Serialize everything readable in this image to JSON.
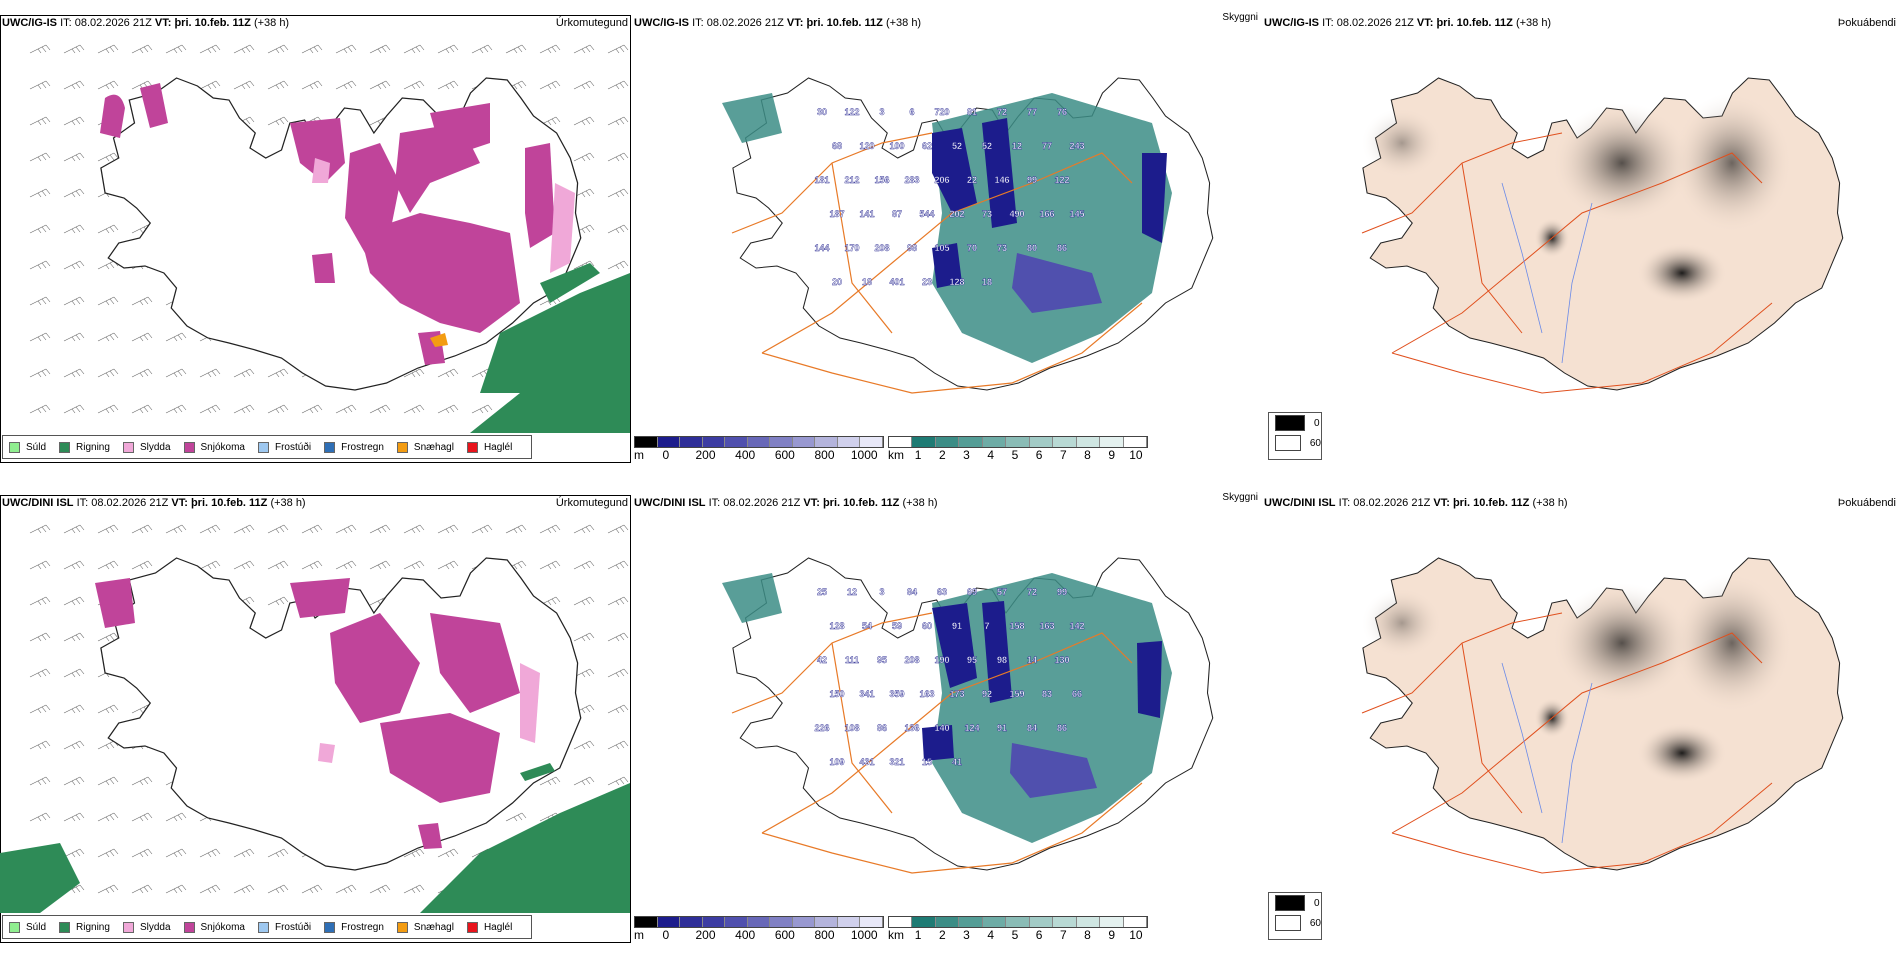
{
  "rows": [
    {
      "model": "UWC/IG-IS",
      "it_label": "IT:",
      "it_value": "08.02.2026 21Z",
      "vt_label": "VT:",
      "vt_value": "þri. 10.feb. 11Z",
      "lead": "(+38 h)",
      "cloud_labels": [
        "30",
        "122",
        "3",
        "6",
        "720",
        "81",
        "72",
        "77",
        "76",
        "68",
        "120",
        "100",
        "62",
        "52",
        "52",
        "12",
        "77",
        "243",
        "181",
        "212",
        "156",
        "283",
        "206",
        "22",
        "146",
        "99",
        "122",
        "187",
        "141",
        "87",
        "544",
        "202",
        "73",
        "490",
        "166",
        "145",
        "144",
        "170",
        "208",
        "98",
        "105",
        "70",
        "73",
        "80",
        "86",
        "20",
        "18",
        "401",
        "23",
        "128",
        "18"
      ]
    },
    {
      "model": "UWC/DINI ISL",
      "it_label": "IT:",
      "it_value": "08.02.2026 21Z",
      "vt_label": "VT:",
      "vt_value": "þri. 10.feb. 11Z",
      "lead": "(+38 h)",
      "cloud_labels": [
        "25",
        "12",
        "3",
        "84",
        "63",
        "69",
        "57",
        "72",
        "99",
        "128",
        "54",
        "59",
        "60",
        "91",
        "7",
        "158",
        "163",
        "142",
        "42",
        "111",
        "95",
        "208",
        "190",
        "95",
        "98",
        "14",
        "130",
        "150",
        "341",
        "359",
        "163",
        "173",
        "92",
        "159",
        "83",
        "66",
        "226",
        "108",
        "86",
        "136",
        "140",
        "124",
        "91",
        "84",
        "86",
        "109",
        "431",
        "321",
        "15",
        "41"
      ]
    }
  ],
  "panels": {
    "precip": {
      "param": "Úrkomutegund"
    },
    "cloud": {
      "param": "Skyggni"
    },
    "vis": {
      "param": "Þokuábendi"
    }
  },
  "precip_legend": [
    {
      "label": "Súld",
      "color": "#90ee90"
    },
    {
      "label": "Rigning",
      "color": "#2e8b57"
    },
    {
      "label": "Slydda",
      "color": "#f0a8d8"
    },
    {
      "label": "Snjókoma",
      "color": "#c0449a"
    },
    {
      "label": "Frostúði",
      "color": "#9ec8f0"
    },
    {
      "label": "Frostregn",
      "color": "#2f6fb6"
    },
    {
      "label": "Snæhagl",
      "color": "#f39c12"
    },
    {
      "label": "Haglél",
      "color": "#e8141c"
    }
  ],
  "cloud_base_scale": {
    "unit": "m",
    "ticks": [
      "0",
      "200",
      "400",
      "600",
      "800",
      "1000"
    ],
    "colors": [
      "#000000",
      "#1c1c8c",
      "#2e2e98",
      "#3c3ca2",
      "#5050ae",
      "#6868b8",
      "#8080c4",
      "#9898d0",
      "#b4b4dc",
      "#d0d0ec",
      "#e8e8f8"
    ]
  },
  "visibility_scale": {
    "unit": "km",
    "ticks": [
      "1",
      "2",
      "3",
      "4",
      "5",
      "6",
      "7",
      "8",
      "9",
      "10"
    ],
    "colors": [
      "#ffffff",
      "#1e7b74",
      "#3c8d86",
      "#549d96",
      "#6eaca6",
      "#8abcb6",
      "#a2cbc6",
      "#b8d9d4",
      "#cfe6e2",
      "#e4f1ef",
      "#ffffff"
    ]
  },
  "fog_legend": [
    {
      "label": "0",
      "color": "#000000"
    },
    {
      "label": "60",
      "color": "#ffffff"
    }
  ],
  "colors": {
    "road": "#e87a28",
    "road_vis": "#e0501e",
    "coast": "#222222",
    "land_vis": "#f5e1d2",
    "river": "#6a8ae8"
  }
}
